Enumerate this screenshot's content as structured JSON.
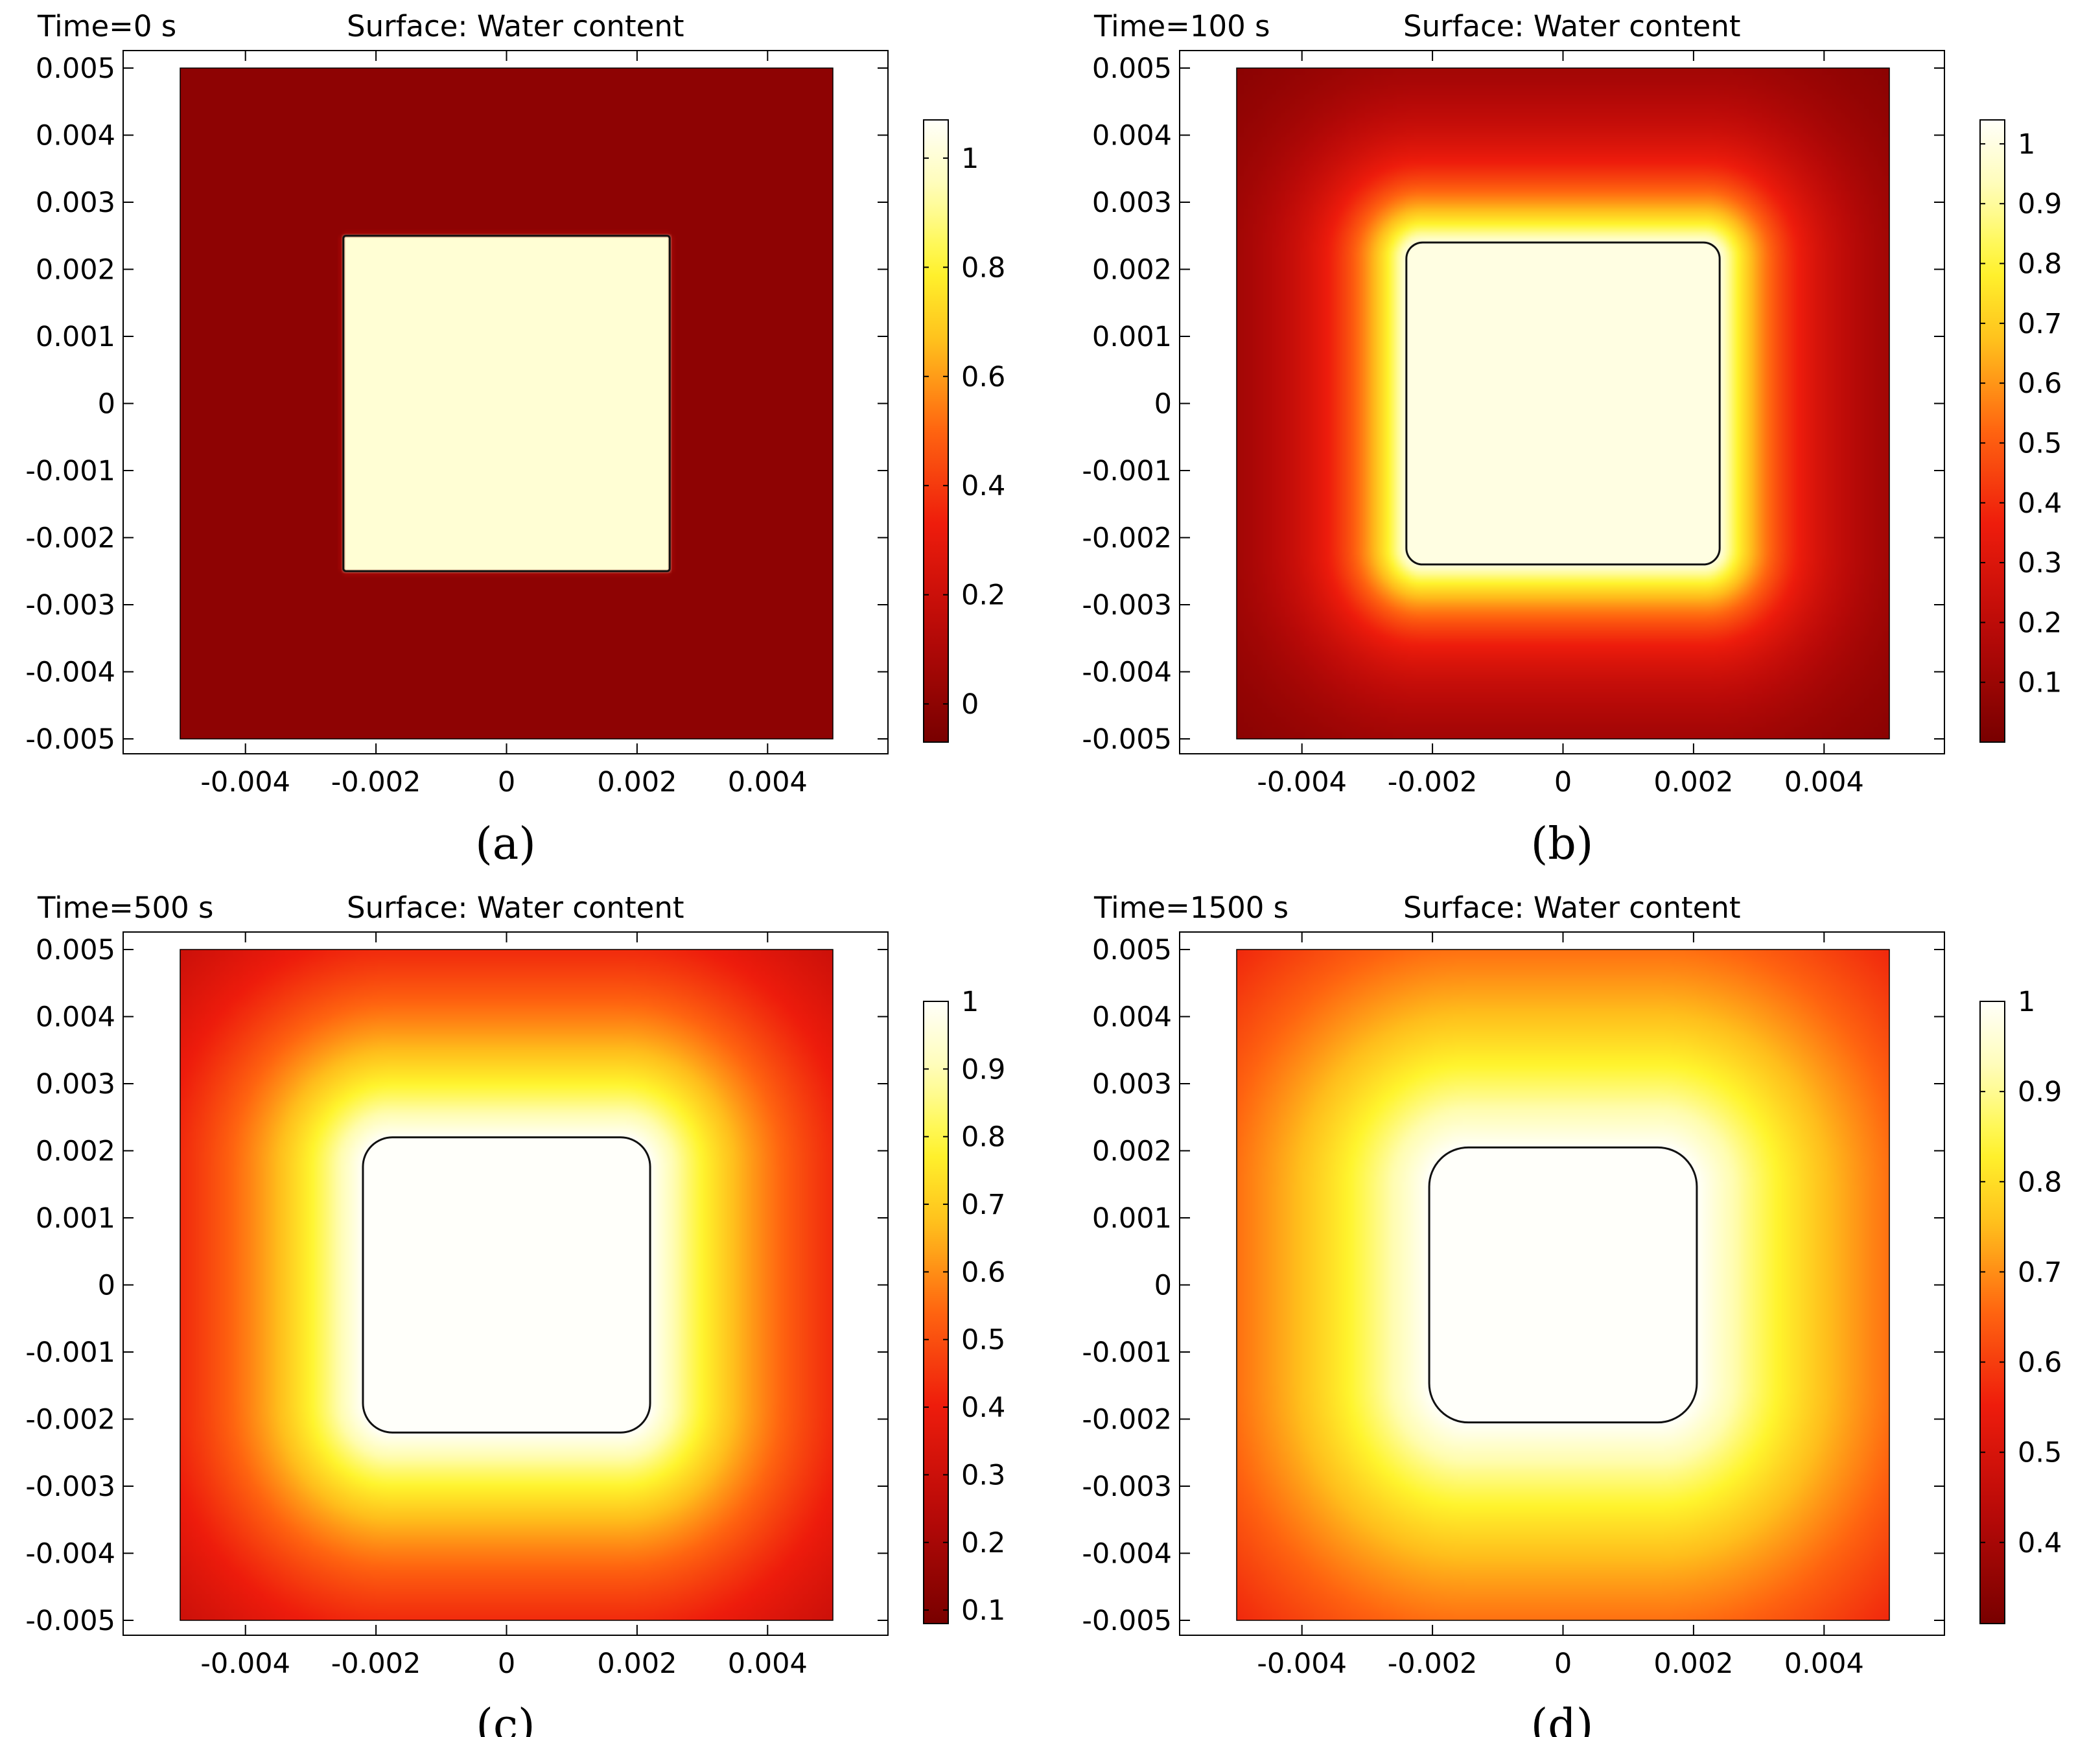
{
  "chart_data": [
    {
      "type": "heatmap",
      "panel_label": "(a)",
      "time_label": "Time=0 s",
      "title": "Surface: Water content",
      "x_ticks": [
        "-0.004",
        "-0.002",
        "0",
        "0.002",
        "0.004"
      ],
      "y_ticks": [
        "0.005",
        "0.004",
        "0.003",
        "0.002",
        "0.001",
        "0",
        "-0.001",
        "-0.002",
        "-0.003",
        "-0.004",
        "-0.005"
      ],
      "domain": [
        -0.005,
        0.005
      ],
      "inner_square": {
        "half_width": 0.0025,
        "corner_radius": 4e-05,
        "contour": true
      },
      "colorbar": {
        "min": -0.07,
        "max": 1.07,
        "ticks": [
          "1",
          "0.8",
          "0.6",
          "0.4",
          "0.2",
          "0"
        ]
      },
      "field": {
        "inside_value": 1.0,
        "outer_value": 0.0,
        "spread": 1.2e-05,
        "gamma": 1.0
      }
    },
    {
      "type": "heatmap",
      "panel_label": "(b)",
      "time_label": "Time=100 s",
      "title": "Surface: Water content",
      "x_ticks": [
        "-0.004",
        "-0.002",
        "0",
        "0.002",
        "0.004"
      ],
      "y_ticks": [
        "0.005",
        "0.004",
        "0.003",
        "0.002",
        "0.001",
        "0",
        "-0.001",
        "-0.002",
        "-0.003",
        "-0.004",
        "-0.005"
      ],
      "domain": [
        -0.005,
        0.005
      ],
      "inner_square": {
        "half_width": 0.0024,
        "corner_radius": 0.00025,
        "contour": true
      },
      "colorbar": {
        "min": 0.0,
        "max": 1.04,
        "ticks": [
          "1",
          "0.9",
          "0.8",
          "0.7",
          "0.6",
          "0.5",
          "0.4",
          "0.3",
          "0.2",
          "0.1"
        ]
      },
      "field": {
        "inside_value": 1.0,
        "outer_value": 0.02,
        "spread": 0.00115,
        "gamma": 1.0
      }
    },
    {
      "type": "heatmap",
      "panel_label": "(c)",
      "time_label": "Time=500 s",
      "title": "Surface: Water content",
      "x_ticks": [
        "-0.004",
        "-0.002",
        "0",
        "0.002",
        "0.004"
      ],
      "y_ticks": [
        "0.005",
        "0.004",
        "0.003",
        "0.002",
        "0.001",
        "0",
        "-0.001",
        "-0.002",
        "-0.003",
        "-0.004",
        "-0.005"
      ],
      "domain": [
        -0.005,
        0.005
      ],
      "inner_square": {
        "half_width": 0.0022,
        "corner_radius": 0.00045,
        "contour": true
      },
      "colorbar": {
        "min": 0.08,
        "max": 1.0,
        "ticks": [
          "1",
          "0.9",
          "0.8",
          "0.7",
          "0.6",
          "0.5",
          "0.4",
          "0.3",
          "0.2",
          "0.1"
        ]
      },
      "field": {
        "inside_value": 1.0,
        "outer_value": 0.08,
        "spread": 0.0029,
        "gamma": 1.0
      }
    },
    {
      "type": "heatmap",
      "panel_label": "(d)",
      "time_label": "Time=1500 s",
      "title": "Surface: Water content",
      "x_ticks": [
        "-0.004",
        "-0.002",
        "0",
        "0.002",
        "0.004"
      ],
      "y_ticks": [
        "0.005",
        "0.004",
        "0.003",
        "0.002",
        "0.001",
        "0",
        "-0.001",
        "-0.002",
        "-0.003",
        "-0.004",
        "-0.005"
      ],
      "domain": [
        -0.005,
        0.005
      ],
      "inner_square": {
        "half_width": 0.00205,
        "corner_radius": 0.0006,
        "contour": true
      },
      "colorbar": {
        "min": 0.31,
        "max": 1.0,
        "ticks": [
          "1",
          "0.9",
          "0.8",
          "0.7",
          "0.6",
          "0.5",
          "0.4"
        ]
      },
      "field": {
        "inside_value": 1.0,
        "outer_value": 0.31,
        "spread": 0.0045,
        "gamma": 1.0
      }
    }
  ]
}
